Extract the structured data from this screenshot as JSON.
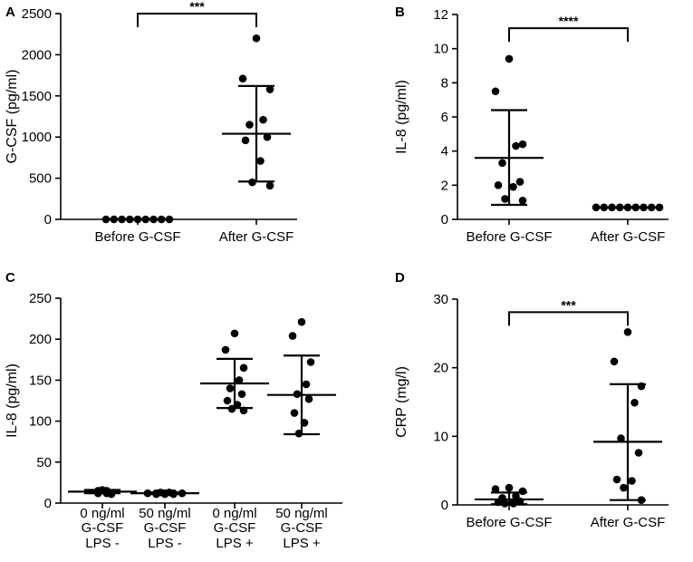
{
  "chart_data": [
    {
      "type": "scatter",
      "panel": "A",
      "ylabel": "G-CSF (pg/ml)",
      "ylim": [
        0,
        2500
      ],
      "yticks": [
        0,
        500,
        1000,
        1500,
        2000,
        2500
      ],
      "categories": [
        [
          "Before G-CSF"
        ],
        [
          "After G-CSF"
        ]
      ],
      "groups": [
        {
          "points": [
            0,
            0,
            0,
            0,
            0,
            0,
            0,
            0,
            0
          ],
          "mean": 0,
          "sd_low": 0,
          "sd_high": 0
        },
        {
          "points": [
            2200,
            1710,
            1580,
            1210,
            1150,
            1000,
            960,
            710,
            450,
            410
          ],
          "mean": 1040,
          "sd_low": 460,
          "sd_high": 1620
        }
      ],
      "significance": {
        "label": "***",
        "between": [
          0,
          1
        ],
        "y": 2500
      }
    },
    {
      "type": "scatter",
      "panel": "B",
      "ylabel": "IL-8 (pg/ml)",
      "ylim": [
        0,
        12
      ],
      "yticks": [
        0,
        2,
        4,
        6,
        8,
        10,
        12
      ],
      "categories": [
        [
          "Before G-CSF"
        ],
        [
          "After G-CSF"
        ]
      ],
      "groups": [
        {
          "points": [
            9.4,
            7.5,
            4.4,
            4.3,
            3.3,
            2.2,
            2.0,
            1.9,
            1.2,
            1.1
          ],
          "mean": 3.6,
          "sd_low": 0.85,
          "sd_high": 6.4
        },
        {
          "points": [
            0.7,
            0.7,
            0.7,
            0.7,
            0.7,
            0.7,
            0.7,
            0.7,
            0.7
          ],
          "mean": 0.7,
          "sd_low": 0.7,
          "sd_high": 0.7
        }
      ],
      "significance": {
        "label": "****",
        "between": [
          0,
          1
        ],
        "y": 11.2
      }
    },
    {
      "type": "scatter",
      "panel": "C",
      "ylabel": "IL-8 (pg/ml)",
      "ylim": [
        0,
        250
      ],
      "yticks": [
        0,
        50,
        100,
        150,
        200,
        250
      ],
      "categories": [
        [
          "0 ng/ml",
          "G-CSF",
          "LPS -"
        ],
        [
          "50 ng/ml",
          "G-CSF",
          "LPS -"
        ],
        [
          "0 ng/ml",
          "G-CSF",
          "LPS +"
        ],
        [
          "50 ng/ml",
          "G-CSF",
          "LPS +"
        ]
      ],
      "groups": [
        {
          "points": [
            16,
            15,
            15,
            14,
            14,
            13,
            13,
            12,
            12,
            11
          ],
          "mean": 14,
          "sd_low": 12,
          "sd_high": 16
        },
        {
          "points": [
            13,
            13,
            12,
            12,
            12,
            12,
            12,
            11,
            11,
            11
          ],
          "mean": 12,
          "sd_low": 11,
          "sd_high": 13
        },
        {
          "points": [
            207,
            187,
            165,
            150,
            140,
            133,
            125,
            120,
            115,
            113
          ],
          "mean": 146,
          "sd_low": 116,
          "sd_high": 176
        },
        {
          "points": [
            221,
            204,
            172,
            145,
            133,
            127,
            110,
            98,
            85
          ],
          "mean": 132,
          "sd_low": 84,
          "sd_high": 180
        }
      ]
    },
    {
      "type": "scatter",
      "panel": "D",
      "ylabel": "CRP (mg/l)",
      "ylim": [
        0,
        30
      ],
      "yticks": [
        0,
        10,
        20,
        30
      ],
      "categories": [
        [
          "Before G-CSF"
        ],
        [
          "After G-CSF"
        ]
      ],
      "groups": [
        {
          "points": [
            2.5,
            2.3,
            2.0,
            1.3,
            1.0,
            0.5,
            0.4,
            0.3,
            0.2,
            0.2
          ],
          "mean": 0.8,
          "sd_low": 0.1,
          "sd_high": 1.8
        },
        {
          "points": [
            25.2,
            20.9,
            17.3,
            14.9,
            9.7,
            7.6,
            3.7,
            3.5,
            2.5,
            0.7
          ],
          "mean": 9.2,
          "sd_low": 0.7,
          "sd_high": 17.6
        }
      ],
      "significance": {
        "label": "***",
        "between": [
          0,
          1
        ],
        "y": 28.1
      }
    }
  ]
}
